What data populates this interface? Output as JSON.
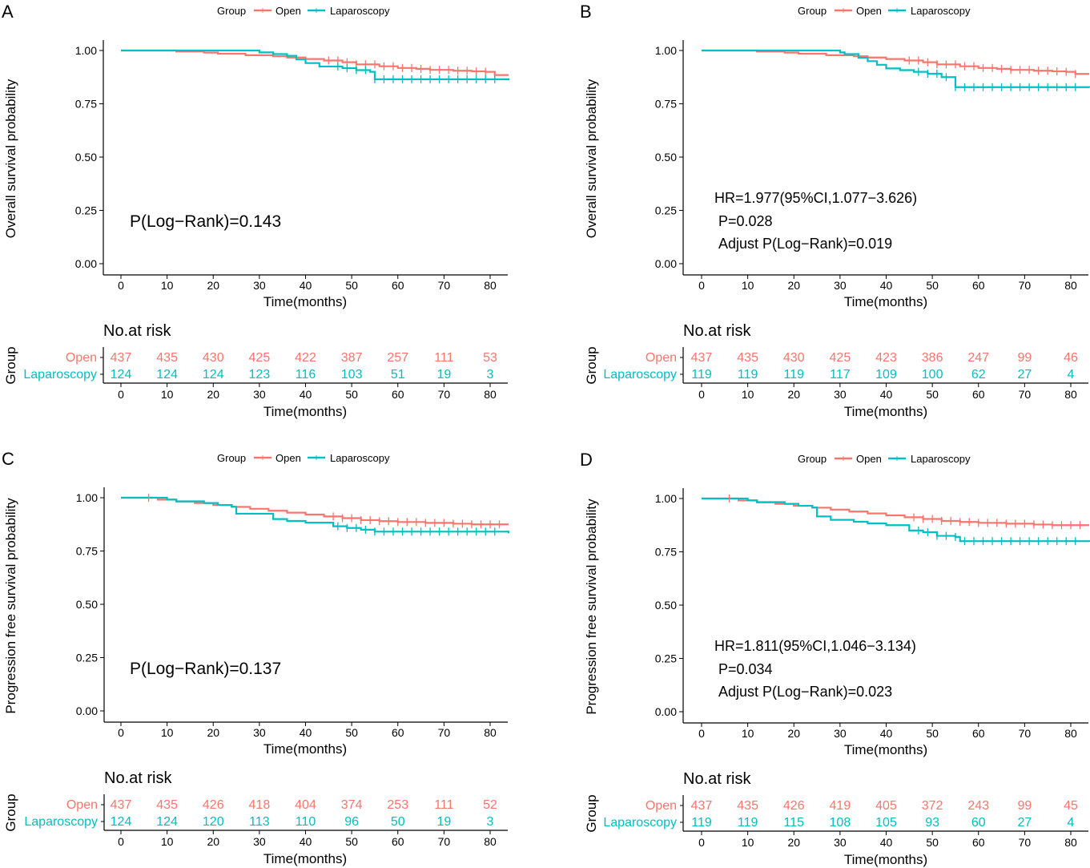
{
  "colors": {
    "open": "#F8766D",
    "laparoscopy": "#00BFC4",
    "axis": "#000000"
  },
  "legend": {
    "title": "Group",
    "open_label": "Open",
    "lap_label": "Laparoscopy"
  },
  "risk_header": "No.at risk",
  "risk_group_label": "Group",
  "chart_data": [
    {
      "panel": "A",
      "type": "line",
      "ylabel": "Overall survival probability",
      "xlabel": "Time(months)",
      "xlim": [
        -3,
        84
      ],
      "ylim": [
        0,
        1.03
      ],
      "xticks": [
        0,
        10,
        20,
        30,
        40,
        50,
        60,
        70,
        80
      ],
      "yticks": [
        "0.00",
        "0.25",
        "0.50",
        "0.75",
        "1.00"
      ],
      "annotations": [
        "P(Log−Rank)=0.143"
      ],
      "series": [
        {
          "name": "Open",
          "x": [
            0,
            12,
            18,
            21,
            27,
            33,
            36,
            40,
            44,
            48,
            51,
            56,
            60,
            64,
            67,
            72,
            76,
            79,
            81,
            84
          ],
          "y": [
            1.0,
            0.995,
            0.99,
            0.985,
            0.978,
            0.973,
            0.967,
            0.96,
            0.953,
            0.945,
            0.935,
            0.926,
            0.918,
            0.914,
            0.909,
            0.905,
            0.902,
            0.9,
            0.885,
            0.885
          ],
          "censor_from": 45
        },
        {
          "name": "Laparoscopy",
          "x": [
            0,
            22,
            30,
            33,
            36,
            38,
            40,
            43,
            48,
            51,
            54,
            55,
            84
          ],
          "y": [
            1.0,
            1.0,
            0.991,
            0.983,
            0.975,
            0.958,
            0.941,
            0.925,
            0.917,
            0.908,
            0.9,
            0.865,
            0.86
          ],
          "censor_from": 47
        }
      ],
      "risk": {
        "open": [
          "437",
          "435",
          "430",
          "425",
          "422",
          "387",
          "257",
          "111",
          "53"
        ],
        "laparoscopy": [
          "124",
          "124",
          "124",
          "123",
          "116",
          "103",
          "51",
          "19",
          "3"
        ]
      }
    },
    {
      "panel": "B",
      "type": "line",
      "ylabel": "Overall survival probability",
      "xlabel": "Time(months)",
      "xlim": [
        -3,
        84
      ],
      "ylim": [
        0,
        1.03
      ],
      "xticks": [
        0,
        10,
        20,
        30,
        40,
        50,
        60,
        70,
        80
      ],
      "yticks": [
        "0.00",
        "0.25",
        "0.50",
        "0.75",
        "1.00"
      ],
      "annotations": [
        "HR=1.977(95%CI,1.077−3.626)",
        "P=0.028",
        "Adjust P(Log−Rank)=0.019"
      ],
      "series": [
        {
          "name": "Open",
          "x": [
            0,
            12,
            18,
            21,
            27,
            33,
            36,
            40,
            44,
            48,
            51,
            56,
            60,
            64,
            67,
            72,
            76,
            79,
            81,
            84
          ],
          "y": [
            1.0,
            0.995,
            0.99,
            0.985,
            0.978,
            0.973,
            0.967,
            0.96,
            0.953,
            0.945,
            0.935,
            0.926,
            0.918,
            0.914,
            0.909,
            0.905,
            0.902,
            0.9,
            0.89,
            0.89
          ],
          "censor_from": 45
        },
        {
          "name": "Laparoscopy",
          "x": [
            0,
            30,
            31,
            34,
            36,
            38,
            40,
            43,
            46,
            49,
            52,
            55,
            84
          ],
          "y": [
            1.0,
            0.991,
            0.983,
            0.966,
            0.95,
            0.933,
            0.916,
            0.908,
            0.9,
            0.891,
            0.875,
            0.828,
            0.825
          ],
          "censor_from": 47
        }
      ],
      "risk": {
        "open": [
          "437",
          "435",
          "430",
          "425",
          "423",
          "386",
          "247",
          "99",
          "46"
        ],
        "laparoscopy": [
          "119",
          "119",
          "119",
          "117",
          "109",
          "100",
          "62",
          "27",
          "4"
        ]
      }
    },
    {
      "panel": "C",
      "type": "line",
      "ylabel": "Progression free survival probability",
      "xlabel": "Time(months)",
      "xlim": [
        -3,
        84
      ],
      "ylim": [
        0,
        1.03
      ],
      "xticks": [
        0,
        10,
        20,
        30,
        40,
        50,
        60,
        70,
        80
      ],
      "yticks": [
        "0.00",
        "0.25",
        "0.50",
        "0.75",
        "1.00"
      ],
      "annotations": [
        "P(Log−Rank)=0.137"
      ],
      "series": [
        {
          "name": "Open",
          "x": [
            0,
            8,
            12,
            16,
            20,
            24,
            28,
            32,
            36,
            40,
            44,
            48,
            52,
            56,
            60,
            66,
            72,
            76,
            84
          ],
          "y": [
            1.0,
            0.991,
            0.982,
            0.975,
            0.966,
            0.957,
            0.948,
            0.939,
            0.93,
            0.921,
            0.912,
            0.904,
            0.895,
            0.89,
            0.886,
            0.882,
            0.878,
            0.875,
            0.875
          ],
          "censor_from": 46
        },
        {
          "name": "Laparoscopy",
          "x": [
            0,
            10,
            12,
            18,
            21,
            24,
            25,
            33,
            36,
            40,
            46,
            49,
            52,
            55,
            84
          ],
          "y": [
            1.0,
            0.991,
            0.983,
            0.975,
            0.966,
            0.958,
            0.925,
            0.9,
            0.891,
            0.883,
            0.866,
            0.858,
            0.85,
            0.841,
            0.833
          ],
          "censor_from": 47
        }
      ],
      "risk": {
        "open": [
          "437",
          "435",
          "426",
          "418",
          "404",
          "374",
          "253",
          "111",
          "52"
        ],
        "laparoscopy": [
          "124",
          "124",
          "120",
          "113",
          "110",
          "96",
          "50",
          "19",
          "3"
        ]
      }
    },
    {
      "panel": "D",
      "type": "line",
      "ylabel": "Progression free survival probability",
      "xlabel": "Time(months)",
      "xlim": [
        -3,
        84
      ],
      "ylim": [
        0,
        1.03
      ],
      "xticks": [
        0,
        10,
        20,
        30,
        40,
        50,
        60,
        70,
        80
      ],
      "yticks": [
        "0.00",
        "0.25",
        "0.50",
        "0.75",
        "1.00"
      ],
      "annotations": [
        "HR=1.811(95%CI,1.046−3.134)",
        "P=0.034",
        "Adjust P(Log−Rank)=0.023"
      ],
      "series": [
        {
          "name": "Open",
          "x": [
            0,
            8,
            12,
            16,
            20,
            24,
            28,
            32,
            36,
            40,
            44,
            48,
            52,
            56,
            60,
            66,
            72,
            76,
            84
          ],
          "y": [
            1.0,
            0.991,
            0.982,
            0.975,
            0.966,
            0.957,
            0.948,
            0.939,
            0.93,
            0.921,
            0.912,
            0.904,
            0.895,
            0.89,
            0.886,
            0.882,
            0.878,
            0.875,
            0.875
          ],
          "censor_from": 46
        },
        {
          "name": "Laparoscopy",
          "x": [
            0,
            10,
            12,
            18,
            21,
            24,
            25,
            28,
            33,
            36,
            40,
            45,
            48,
            51,
            55,
            56,
            84
          ],
          "y": [
            1.0,
            0.991,
            0.983,
            0.975,
            0.966,
            0.958,
            0.916,
            0.9,
            0.891,
            0.883,
            0.875,
            0.85,
            0.842,
            0.825,
            0.82,
            0.8,
            0.797
          ],
          "censor_from": 47
        }
      ],
      "risk": {
        "open": [
          "437",
          "435",
          "426",
          "419",
          "405",
          "372",
          "243",
          "99",
          "45"
        ],
        "laparoscopy": [
          "119",
          "119",
          "115",
          "108",
          "105",
          "93",
          "60",
          "27",
          "4"
        ]
      }
    }
  ]
}
